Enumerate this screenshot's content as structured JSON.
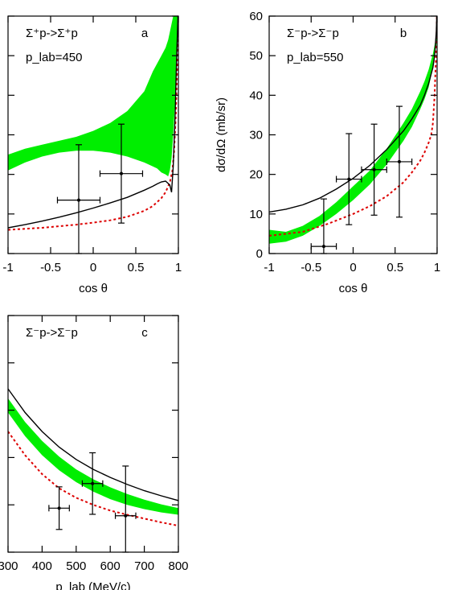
{
  "chart_data": [
    {
      "panel": "a",
      "type": "line",
      "xlabel": "cos θ",
      "ylabel": "",
      "xlim": [
        -1,
        1
      ],
      "ylim": [
        0,
        60
      ],
      "x_ticks": [
        -1,
        -0.5,
        0,
        0.5,
        1
      ],
      "x_tick_labels": [
        "-1",
        "-0.5",
        "0",
        "0.5",
        "1"
      ],
      "y_ticks": [
        0,
        10,
        20,
        30,
        40,
        50,
        60
      ],
      "annotations": {
        "reaction": "Σ⁺p->Σ⁺p",
        "momentum": "p_lab=450",
        "panel_label": "a"
      },
      "band": {
        "color": "#00ee00",
        "x": [
          -1,
          -0.8,
          -0.6,
          -0.4,
          -0.2,
          0,
          0.2,
          0.4,
          0.6,
          0.7,
          0.75,
          0.8,
          0.85,
          0.88,
          0.9,
          0.92,
          0.94,
          0.96,
          0.98,
          1.0
        ],
        "lower": [
          21,
          23,
          24.5,
          25.5,
          26,
          26,
          25.5,
          24.5,
          23,
          22,
          21.5,
          20.5,
          20,
          19.5,
          21,
          24,
          30,
          38,
          48,
          62
        ],
        "upper": [
          25,
          26.5,
          27.5,
          28.5,
          29.5,
          31,
          33,
          36,
          41,
          46,
          48,
          50,
          52,
          54,
          56,
          58,
          60,
          62,
          63,
          63
        ]
      },
      "solid_curve": {
        "color": "#000000",
        "x": [
          -1,
          -0.8,
          -0.6,
          -0.4,
          -0.2,
          0,
          0.2,
          0.4,
          0.6,
          0.7,
          0.75,
          0.8,
          0.85,
          0.9,
          0.92,
          0.94,
          0.96,
          0.98,
          1.0
        ],
        "y": [
          6.5,
          7.3,
          8.2,
          9.2,
          10.3,
          11.5,
          12.8,
          14.2,
          16,
          17,
          17.6,
          18.1,
          18.3,
          17.3,
          15.5,
          22,
          34,
          50,
          63
        ]
      },
      "dotted_curve": {
        "color": "#dd0000",
        "x": [
          -1,
          -0.6,
          -0.2,
          0,
          0.2,
          0.4,
          0.6,
          0.7,
          0.8,
          0.85,
          0.9,
          0.93,
          0.95,
          0.97,
          0.99,
          1.0
        ],
        "y": [
          6,
          6.5,
          7.3,
          7.8,
          8.4,
          9.3,
          10.8,
          12,
          14,
          15.5,
          18,
          21,
          26,
          35,
          50,
          62
        ]
      },
      "points": [
        {
          "x": -0.17,
          "y": 13.5,
          "xerr": 0.25,
          "yerr": 14
        },
        {
          "x": 0.33,
          "y": 20.2,
          "xerr": 0.25,
          "yerr": 12.5
        }
      ]
    },
    {
      "panel": "b",
      "type": "line",
      "xlabel": "cos θ",
      "ylabel": "dσ/dΩ (mb/sr)",
      "xlim": [
        -1,
        1
      ],
      "ylim": [
        0,
        60
      ],
      "x_ticks": [
        -1,
        -0.5,
        0,
        0.5,
        1
      ],
      "x_tick_labels": [
        "-1",
        "-0.5",
        "0",
        "0.5",
        "1"
      ],
      "y_ticks": [
        0,
        10,
        20,
        30,
        40,
        50,
        60
      ],
      "y_tick_labels": [
        "0",
        "10",
        "20",
        "30",
        "40",
        "50",
        "60"
      ],
      "annotations": {
        "reaction": "Σ⁻p->Σ⁻p",
        "momentum": "p_lab=550",
        "panel_label": "b"
      },
      "band": {
        "color": "#00ee00",
        "x": [
          -1,
          -0.8,
          -0.6,
          -0.4,
          -0.2,
          0,
          0.2,
          0.4,
          0.6,
          0.7,
          0.8,
          0.85,
          0.9,
          0.95,
          1.0
        ],
        "lower": [
          2.5,
          3,
          4.5,
          7,
          10,
          13.5,
          17.5,
          22.5,
          28.5,
          32,
          36.5,
          39,
          42,
          47,
          54
        ],
        "upper": [
          6,
          5.5,
          7,
          9.5,
          13,
          17,
          21,
          26.5,
          33,
          36.5,
          41,
          43.5,
          46.5,
          50.5,
          56
        ]
      },
      "solid_curve": {
        "color": "#000000",
        "x": [
          -1,
          -0.8,
          -0.6,
          -0.4,
          -0.2,
          0,
          0.2,
          0.4,
          0.6,
          0.7,
          0.8,
          0.85,
          0.9,
          0.95,
          0.97,
          0.99,
          1.0
        ],
        "y": [
          10.5,
          11.2,
          12.3,
          14,
          16.3,
          19,
          22.3,
          26.3,
          31,
          34,
          37.5,
          40,
          43,
          47,
          50,
          56,
          63
        ]
      },
      "dotted_curve": {
        "color": "#dd0000",
        "x": [
          -1,
          -0.6,
          -0.3,
          0,
          0.2,
          0.4,
          0.6,
          0.7,
          0.8,
          0.85,
          0.9,
          0.93,
          0.95,
          0.97,
          0.99,
          1.0
        ],
        "y": [
          4.5,
          5.5,
          7.5,
          10,
          12,
          14.5,
          18,
          20.5,
          23.5,
          25.5,
          28,
          30,
          33,
          40,
          52,
          63
        ]
      },
      "points": [
        {
          "x": -0.35,
          "y": 1.8,
          "xerr": 0.15,
          "yerr": 12
        },
        {
          "x": -0.05,
          "y": 18.8,
          "xerr": 0.15,
          "yerr": 11.5
        },
        {
          "x": 0.25,
          "y": 21.2,
          "xerr": 0.15,
          "yerr": 11.5
        },
        {
          "x": 0.55,
          "y": 23.2,
          "xerr": 0.15,
          "yerr": 14
        }
      ]
    },
    {
      "panel": "c",
      "type": "line",
      "xlabel": "p_lab (MeV/c)",
      "ylabel": "",
      "xlim": [
        300,
        800
      ],
      "ylim": [
        0,
        50
      ],
      "x_ticks": [
        300,
        400,
        500,
        600,
        700,
        800
      ],
      "x_tick_labels": [
        "300",
        "400",
        "500",
        "600",
        "700",
        "800"
      ],
      "y_ticks": [
        0,
        10,
        20,
        30,
        40,
        50
      ],
      "annotations": {
        "reaction": "Σ⁻p->Σ⁻p",
        "panel_label": "c"
      },
      "band": {
        "color": "#00ee00",
        "x": [
          300,
          350,
          400,
          450,
          500,
          550,
          600,
          650,
          700,
          750,
          800
        ],
        "lower": [
          29.5,
          24.5,
          20.5,
          17.3,
          14.8,
          12.8,
          11.2,
          10,
          9.1,
          8.4,
          7.9
        ],
        "upper": [
          32.5,
          27.5,
          23.5,
          20.2,
          17.5,
          15.4,
          13.7,
          12.3,
          11.1,
          10.1,
          9.3
        ]
      },
      "solid_curve": {
        "color": "#000000",
        "x": [
          300,
          350,
          400,
          450,
          500,
          550,
          600,
          650,
          700,
          750,
          800
        ],
        "y": [
          34.5,
          29.5,
          25.5,
          22.2,
          19.6,
          17.5,
          15.8,
          14.3,
          13,
          11.9,
          10.9
        ]
      },
      "dotted_curve": {
        "color": "#dd0000",
        "x": [
          300,
          350,
          400,
          450,
          500,
          550,
          600,
          650,
          700,
          750,
          800
        ],
        "y": [
          25.5,
          20.5,
          16.5,
          13.5,
          11.5,
          10,
          8.8,
          7.9,
          7.1,
          6.3,
          5.6
        ]
      },
      "points": [
        {
          "x": 450,
          "y": 9.3,
          "xerr": 30,
          "yerr": 4.5
        },
        {
          "x": 548,
          "y": 14.5,
          "xerr": 30,
          "yerr": 6.5
        },
        {
          "x": 645,
          "y": 7.7,
          "xerr": 30,
          "yerr": 10.5
        }
      ]
    }
  ]
}
